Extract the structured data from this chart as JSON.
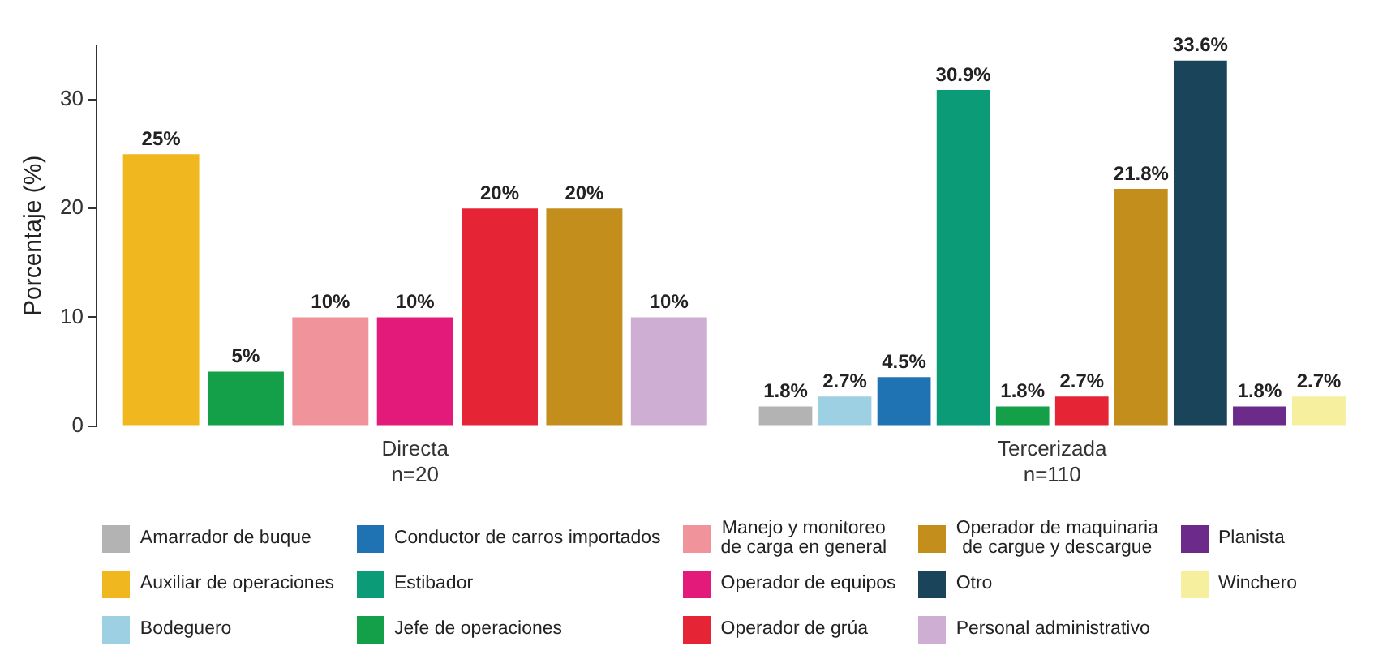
{
  "chart_data": {
    "type": "bar",
    "ylabel": "Porcentaje (%)",
    "categories": [
      "Directa\nn=20",
      "Tercerizada\nn=110"
    ],
    "ylim": [
      0,
      35
    ],
    "yticks": [
      0,
      10,
      20,
      30
    ],
    "grid": false,
    "legend": "bottom",
    "series": [
      {
        "name": "Amarrador de buque",
        "color": "#b3b3b3",
        "values": [
          null,
          1.8
        ],
        "value_labels": [
          null,
          "1.8%"
        ]
      },
      {
        "name": "Auxiliar de operaciones",
        "color": "#f0b71e",
        "values": [
          25,
          null
        ],
        "value_labels": [
          "25%",
          null
        ]
      },
      {
        "name": "Bodeguero",
        "color": "#9dd0e3",
        "values": [
          null,
          2.7
        ],
        "value_labels": [
          null,
          "2.7%"
        ]
      },
      {
        "name": "Conductor de carros importados",
        "color": "#1f73b2",
        "values": [
          null,
          4.5
        ],
        "value_labels": [
          null,
          "4.5%"
        ]
      },
      {
        "name": "Estibador",
        "color": "#0c9b77",
        "values": [
          null,
          30.9
        ],
        "value_labels": [
          null,
          "30.9%"
        ]
      },
      {
        "name": "Jefe de operaciones",
        "color": "#14a048",
        "values": [
          5,
          1.8
        ],
        "value_labels": [
          "5%",
          "1.8%"
        ]
      },
      {
        "name": "Manejo y monitoreo\nde carga en general",
        "color": "#f0939a",
        "values": [
          10,
          null
        ],
        "value_labels": [
          "10%",
          null
        ]
      },
      {
        "name": "Operador de equipos",
        "color": "#e31a79",
        "values": [
          10,
          null
        ],
        "value_labels": [
          "10%",
          null
        ]
      },
      {
        "name": "Operador de grúa",
        "color": "#e52535",
        "values": [
          20,
          2.7
        ],
        "value_labels": [
          "20%",
          "2.7%"
        ]
      },
      {
        "name": "Operador de maquinaria\nde cargue y descargue",
        "color": "#c38e1c",
        "values": [
          20,
          21.8
        ],
        "value_labels": [
          "20%",
          "21.8%"
        ]
      },
      {
        "name": "Otro",
        "color": "#1a4459",
        "values": [
          null,
          33.6
        ],
        "value_labels": [
          null,
          "33.6%"
        ]
      },
      {
        "name": "Personal administrativo",
        "color": "#cfaed3",
        "values": [
          10,
          null
        ],
        "value_labels": [
          "10%",
          null
        ]
      },
      {
        "name": "Planista",
        "color": "#6c2a8a",
        "values": [
          null,
          1.8
        ],
        "value_labels": [
          null,
          "1.8%"
        ]
      },
      {
        "name": "Winchero",
        "color": "#f5ef9e",
        "values": [
          null,
          2.7
        ],
        "value_labels": [
          null,
          "2.7%"
        ]
      }
    ]
  }
}
